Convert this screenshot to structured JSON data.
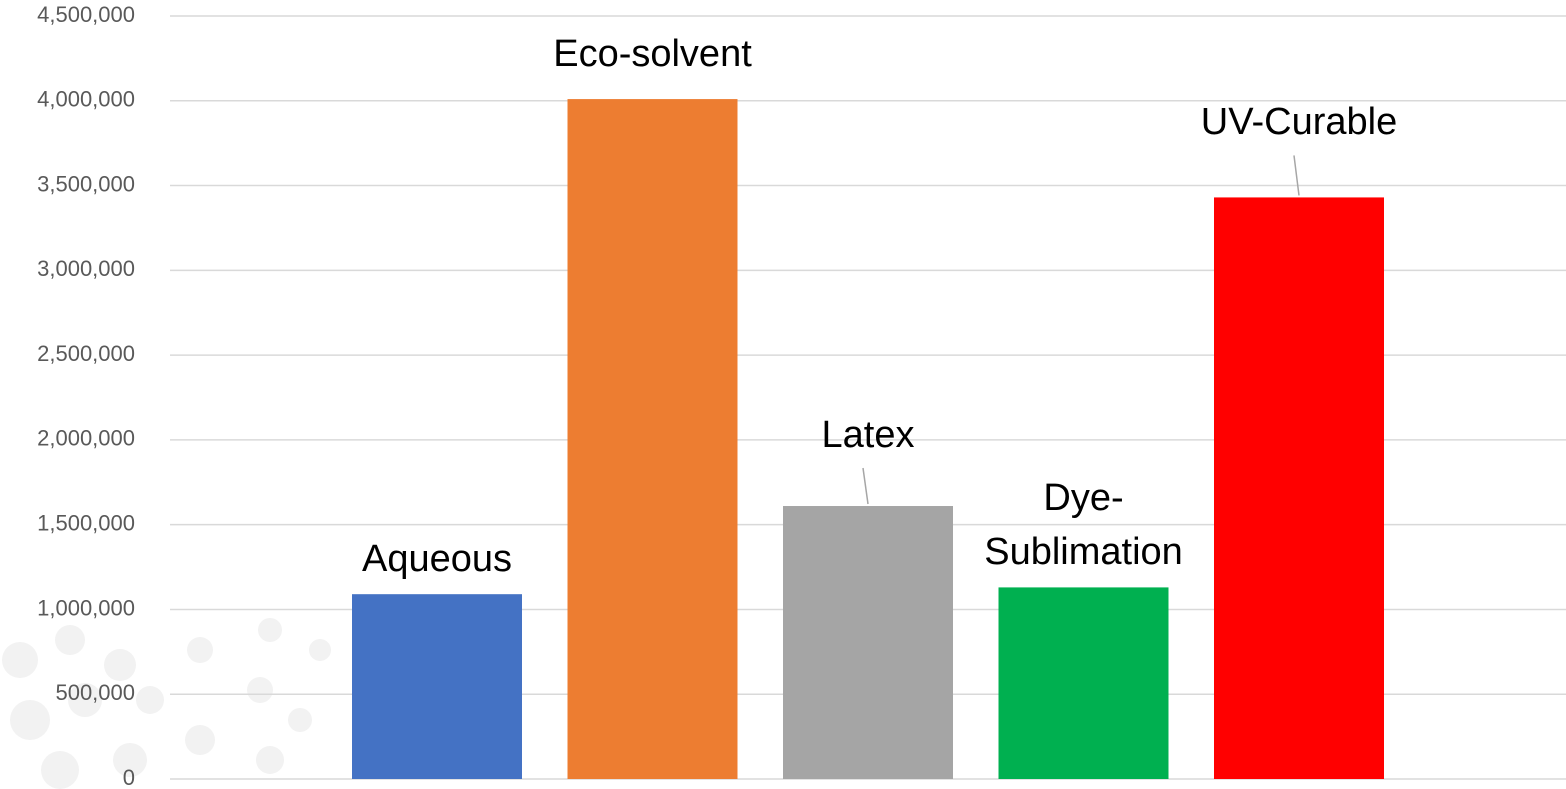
{
  "chart_data": {
    "type": "bar",
    "categories": [
      "Aqueous",
      "Eco-solvent",
      "Latex",
      "Dye-Sublimation",
      "UV-Curable"
    ],
    "values": [
      1090000,
      4010000,
      1610000,
      1130000,
      3430000
    ],
    "colors": [
      "#4472c4",
      "#ed7d31",
      "#a5a5a5",
      "#00b050",
      "#ff0000"
    ],
    "ylim": [
      0,
      4500000
    ],
    "yticks": [
      {
        "value": 0,
        "label": "0"
      },
      {
        "value": 500000,
        "label": "500,000"
      },
      {
        "value": 1000000,
        "label": "1,000,000"
      },
      {
        "value": 1500000,
        "label": "1,500,000"
      },
      {
        "value": 2000000,
        "label": "2,000,000"
      },
      {
        "value": 2500000,
        "label": "2,500,000"
      },
      {
        "value": 3000000,
        "label": "3,000,000"
      },
      {
        "value": 3500000,
        "label": "3,500,000"
      },
      {
        "value": 4000000,
        "label": "4,000,000"
      },
      {
        "value": 4500000,
        "label": "4,500,000"
      }
    ],
    "grid": true
  }
}
